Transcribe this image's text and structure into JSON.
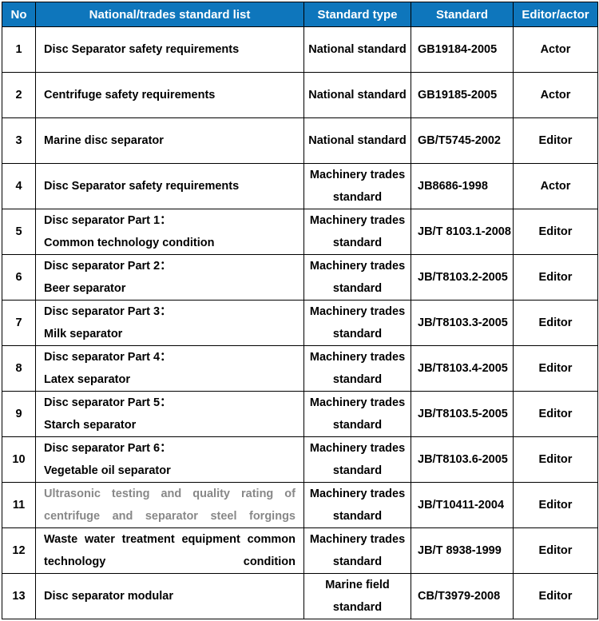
{
  "columns": [
    "No",
    "National/trades standard list",
    "Standard type",
    "Standard",
    "Editor/actor"
  ],
  "header_bg": "#0e76bc",
  "header_fg": "#ffffff",
  "border_color": "#000000",
  "rows": [
    {
      "no": "1",
      "name": "Disc Separator safety requirements",
      "stype": "National standard",
      "std": "GB19184-2005",
      "actor": "Actor"
    },
    {
      "no": "2",
      "name": "Centrifuge safety requirements",
      "stype": "National standard",
      "std": "GB19185-2005",
      "actor": "Actor"
    },
    {
      "no": "3",
      "name": "Marine disc separator",
      "stype": "National standard",
      "std": "GB/T5745-2002",
      "actor": "Editor"
    },
    {
      "no": "4",
      "name": "Disc Separator safety requirements",
      "stype": "Machinery trades standard",
      "std": "JB8686-1998",
      "actor": "Actor"
    },
    {
      "no": "5",
      "name": "Disc separator Part 1：\nCommon technology condition",
      "stype": "Machinery trades standard",
      "std": "JB/T 8103.1-2008",
      "actor": "Editor"
    },
    {
      "no": "6",
      "name": "Disc separator Part 2：\nBeer separator",
      "stype": "Machinery trades standard",
      "std": "JB/T8103.2-2005",
      "actor": "Editor"
    },
    {
      "no": "7",
      "name": "Disc separator Part 3：\nMilk separator",
      "stype": "Machinery trades standard",
      "std": "JB/T8103.3-2005",
      "actor": "Editor"
    },
    {
      "no": "8",
      "name": "Disc separator Part 4：\nLatex separator",
      "stype": "Machinery trades standard",
      "std": "JB/T8103.4-2005",
      "actor": "Editor"
    },
    {
      "no": "9",
      "name": "Disc separator Part 5：\nStarch separator",
      "stype": "Machinery trades standard",
      "std": "JB/T8103.5-2005",
      "actor": "Editor"
    },
    {
      "no": "10",
      "name": "Disc separator Part 6：\nVegetable oil separator",
      "stype": "Machinery trades standard",
      "std": "JB/T8103.6-2005",
      "actor": "Editor"
    },
    {
      "no": "11",
      "name": "Ultrasonic testing and quality rating of centrifuge and separator steel forgings",
      "stype": "Machinery trades standard",
      "std": "JB/T10411-2004",
      "actor": "Editor",
      "muted": true,
      "justify": true
    },
    {
      "no": "12",
      "name": "Waste water treatment equipment common technology condition",
      "stype": "Machinery trades standard",
      "std": "JB/T 8938-1999",
      "actor": "Editor",
      "justify": true
    },
    {
      "no": "13",
      "name": "Disc separator modular",
      "stype": "Marine field standard",
      "std": "CB/T3979-2008",
      "actor": "Editor"
    }
  ]
}
